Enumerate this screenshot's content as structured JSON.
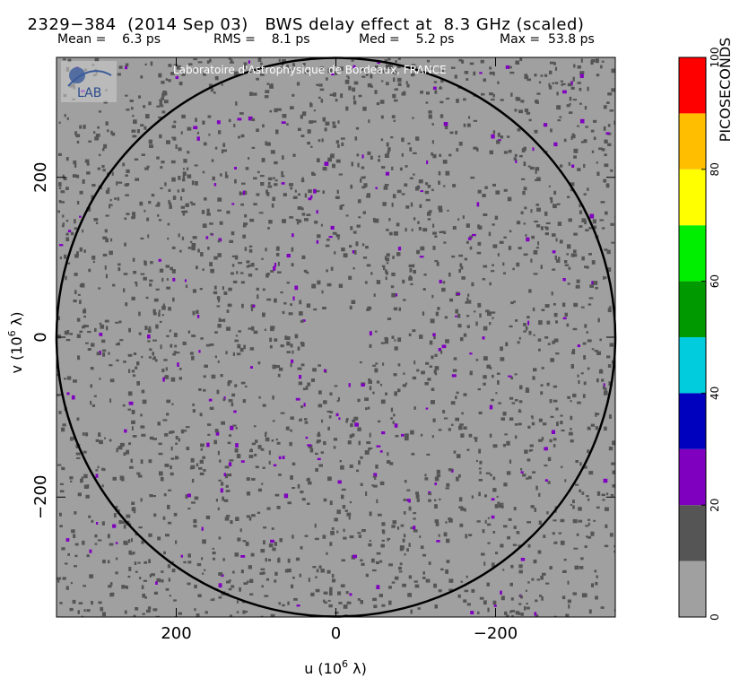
{
  "header": {
    "source": "2329−384",
    "date": "(2014 Sep 03)",
    "effect": "BWS delay effect at",
    "freq": "8.3 GHz",
    "mode": "(scaled)"
  },
  "stats": [
    {
      "label": "Mean =",
      "value": "6.3 ps"
    },
    {
      "label": "RMS =",
      "value": "8.1 ps"
    },
    {
      "label": "Med =",
      "value": "5.2 ps"
    },
    {
      "label": "Max =",
      "value": "53.8 ps"
    }
  ],
  "credit": "Laboratoire d'Astrophysique de Bordeaux, FRANCE",
  "logo_text": "LAB",
  "chart_data": {
    "type": "heatmap",
    "xlabel": "u  (10^6 λ)",
    "ylabel": "v  (10^6 λ)",
    "xlim": [
      350,
      -350
    ],
    "ylim": [
      -350,
      350
    ],
    "x_ticks": [
      200,
      0,
      -200
    ],
    "x_tick_labels": [
      "200",
      "0",
      "−200"
    ],
    "y_ticks": [
      200,
      0,
      -200
    ],
    "y_tick_labels": [
      "200",
      "0",
      "−200"
    ],
    "circle_radius": 350,
    "colorbar": {
      "label": "PICOSECONDS",
      "range": [
        0,
        100
      ],
      "ticks": [
        0,
        20,
        40,
        60,
        80,
        100
      ],
      "bins": [
        {
          "from": 0,
          "to": 10,
          "color": "#a0a0a0"
        },
        {
          "from": 10,
          "to": 20,
          "color": "#555555"
        },
        {
          "from": 20,
          "to": 30,
          "color": "#7f00bf"
        },
        {
          "from": 30,
          "to": 40,
          "color": "#0000bf"
        },
        {
          "from": 40,
          "to": 50,
          "color": "#00ccde"
        },
        {
          "from": 50,
          "to": 60,
          "color": "#009900"
        },
        {
          "from": 60,
          "to": 70,
          "color": "#00ee00"
        },
        {
          "from": 70,
          "to": 80,
          "color": "#ffff00"
        },
        {
          "from": 80,
          "to": 90,
          "color": "#ffbf00"
        },
        {
          "from": 90,
          "to": 100,
          "color": "#ff0000"
        }
      ]
    },
    "background_color": "#a0a0a0"
  }
}
